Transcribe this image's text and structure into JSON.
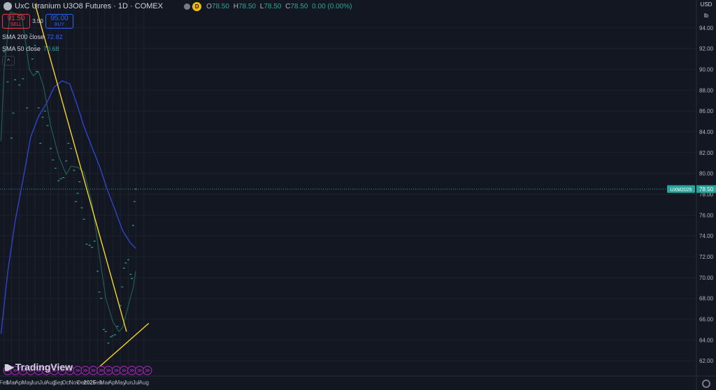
{
  "header": {
    "title": "UxC Uranium U3O8 Futures · 1D · COMEX",
    "badge": "D",
    "ohlc": [
      {
        "k": "O",
        "v": "78.50"
      },
      {
        "k": "H",
        "v": "78.50"
      },
      {
        "k": "L",
        "v": "78.50"
      },
      {
        "k": "C",
        "v": "78.50"
      }
    ],
    "change": "0.00 (0.00%)"
  },
  "trade": {
    "sell_price": "91.50",
    "sell_label": "SELL",
    "spread": "3.50",
    "buy_price": "95.00",
    "buy_label": "BUY"
  },
  "indicators": [
    {
      "label": "SMA 200 close",
      "value": "72.82",
      "color": "#2962ff"
    },
    {
      "label": "SMA 50 close",
      "value": "70.68",
      "color": "#26a69a"
    }
  ],
  "collapse_glyph": "^",
  "logo": {
    "text": "TradingView",
    "icon": "tradingview-logo-icon"
  },
  "price_axis": {
    "currency": "USD",
    "unit": "lb"
  },
  "colors": {
    "background": "#131722",
    "sma200": "#2e46c9",
    "sma50": "#1f5e4e",
    "price": "#26a69a",
    "trendline": "#f5d62a",
    "last_label_bg": "#26a69a",
    "event_icon": "#9c27b0"
  },
  "chart_data": {
    "type": "line",
    "ylim": [
      61,
      96
    ],
    "yticks": [
      62,
      64,
      66,
      68,
      70,
      72,
      74,
      76,
      78,
      80,
      82,
      84,
      86,
      88,
      90,
      92,
      94
    ],
    "xlabels": [
      "Feb",
      "Mar",
      "Apr",
      "May",
      "Jun",
      "Jul",
      "Aug",
      "Sep",
      "Oct",
      "Nov",
      "Dec",
      "2025",
      "Feb",
      "Mar",
      "Apr",
      "May",
      "Jun",
      "Jul",
      "Aug"
    ],
    "last_price": 78.5,
    "last_price_label": "78.50",
    "symbol_label": "UXM2025",
    "series": [
      {
        "name": "price",
        "points": [
          [
            "2024-02-01",
            91.7
          ],
          [
            "2024-02-15",
            88.8
          ],
          [
            "2024-03-01",
            83.4
          ],
          [
            "2024-03-08",
            85.8
          ],
          [
            "2024-03-15",
            89.0
          ],
          [
            "2024-04-01",
            88.5
          ],
          [
            "2024-04-15",
            89.1
          ],
          [
            "2024-05-01",
            86.3
          ],
          [
            "2024-05-08",
            92.2
          ],
          [
            "2024-05-15",
            93.4
          ],
          [
            "2024-05-22",
            91.0
          ],
          [
            "2024-06-01",
            92.3
          ],
          [
            "2024-06-08",
            89.8
          ],
          [
            "2024-06-15",
            86.3
          ],
          [
            "2024-06-22",
            82.9
          ],
          [
            "2024-07-01",
            85.4
          ],
          [
            "2024-07-10",
            86.0
          ],
          [
            "2024-07-20",
            84.6
          ],
          [
            "2024-08-01",
            82.4
          ],
          [
            "2024-08-10",
            81.3
          ],
          [
            "2024-08-20",
            80.5
          ],
          [
            "2024-09-01",
            79.3
          ],
          [
            "2024-09-10",
            79.5
          ],
          [
            "2024-09-20",
            79.6
          ],
          [
            "2024-10-01",
            81.2
          ],
          [
            "2024-10-10",
            82.9
          ],
          [
            "2024-10-20",
            82.4
          ],
          [
            "2024-11-01",
            80.3
          ],
          [
            "2024-11-08",
            77.3
          ],
          [
            "2024-11-15",
            78.1
          ],
          [
            "2024-11-22",
            79.2
          ],
          [
            "2024-12-01",
            76.7
          ],
          [
            "2024-12-10",
            75.6
          ],
          [
            "2024-12-20",
            73.2
          ],
          [
            "2025-01-01",
            73.1
          ],
          [
            "2025-01-10",
            72.9
          ],
          [
            "2025-01-20",
            73.5
          ],
          [
            "2025-02-01",
            70.6
          ],
          [
            "2025-02-08",
            68.6
          ],
          [
            "2025-02-15",
            68.0
          ],
          [
            "2025-02-25",
            65.0
          ],
          [
            "2025-03-05",
            64.8
          ],
          [
            "2025-03-15",
            63.7
          ],
          [
            "2025-03-25",
            64.3
          ],
          [
            "2025-04-01",
            64.4
          ],
          [
            "2025-04-10",
            64.5
          ],
          [
            "2025-04-20",
            65.3
          ],
          [
            "2025-05-01",
            67.3
          ],
          [
            "2025-05-08",
            69.1
          ],
          [
            "2025-05-15",
            70.9
          ],
          [
            "2025-05-22",
            71.4
          ],
          [
            "2025-06-01",
            71.7
          ],
          [
            "2025-06-10",
            70.3
          ],
          [
            "2025-06-15",
            69.9
          ],
          [
            "2025-06-20",
            75.0
          ],
          [
            "2025-06-25",
            77.3
          ],
          [
            "2025-06-30",
            78.5
          ]
        ]
      },
      {
        "name": "SMA 200 close",
        "points": [
          [
            "2024-01-20",
            64.6
          ],
          [
            "2024-02-15",
            70.5
          ],
          [
            "2024-03-15",
            75.4
          ],
          [
            "2024-04-15",
            79.4
          ],
          [
            "2024-05-15",
            83.5
          ],
          [
            "2024-06-15",
            85.5
          ],
          [
            "2024-07-15",
            86.7
          ],
          [
            "2024-08-15",
            88.3
          ],
          [
            "2024-09-15",
            88.9
          ],
          [
            "2024-10-15",
            88.6
          ],
          [
            "2024-11-10",
            86.8
          ],
          [
            "2024-12-10",
            84.5
          ],
          [
            "2025-01-10",
            82.5
          ],
          [
            "2025-02-10",
            80.6
          ],
          [
            "2025-03-10",
            78.5
          ],
          [
            "2025-04-10",
            76.5
          ],
          [
            "2025-05-10",
            74.5
          ],
          [
            "2025-06-10",
            73.3
          ],
          [
            "2025-06-30",
            72.8
          ]
        ]
      },
      {
        "name": "SMA 50 close",
        "points": [
          [
            "2024-01-20",
            83.1
          ],
          [
            "2024-02-01",
            90.0
          ],
          [
            "2024-02-15",
            93.3
          ],
          [
            "2024-02-25",
            95.5
          ],
          [
            "2024-04-10",
            95.2
          ],
          [
            "2024-05-10",
            90.0
          ],
          [
            "2024-05-25",
            89.4
          ],
          [
            "2024-06-15",
            89.8
          ],
          [
            "2024-07-05",
            88.3
          ],
          [
            "2024-08-01",
            84.6
          ],
          [
            "2024-09-01",
            81.7
          ],
          [
            "2024-10-01",
            79.9
          ],
          [
            "2024-10-20",
            80.7
          ],
          [
            "2024-11-15",
            80.6
          ],
          [
            "2024-12-10",
            80.1
          ],
          [
            "2025-01-10",
            77.2
          ],
          [
            "2025-02-10",
            71.8
          ],
          [
            "2025-03-05",
            68.0
          ],
          [
            "2025-04-01",
            65.8
          ],
          [
            "2025-04-25",
            64.8
          ],
          [
            "2025-05-10",
            65.2
          ],
          [
            "2025-06-01",
            67.3
          ],
          [
            "2025-06-20",
            69.0
          ],
          [
            "2025-06-30",
            70.6
          ]
        ]
      }
    ],
    "trendlines": [
      {
        "from": [
          "2024-06-01",
          96.3
        ],
        "to": [
          "2025-05-25",
          64.8
        ]
      },
      {
        "from": [
          "2025-01-15",
          60.9
        ],
        "to": [
          "2025-08-20",
          65.6
        ]
      }
    ],
    "event_icon": "arrow-circle-icon",
    "event_dates": [
      "2024-02-15",
      "2024-03-15",
      "2024-04-15",
      "2024-05-15",
      "2024-06-15",
      "2024-07-15",
      "2024-08-15",
      "2024-09-15",
      "2024-10-15",
      "2024-11-15",
      "2024-12-15",
      "2025-01-15",
      "2025-02-15",
      "2025-03-15",
      "2025-04-15",
      "2025-05-15",
      "2025-06-15",
      "2025-07-15",
      "2025-08-15"
    ]
  }
}
